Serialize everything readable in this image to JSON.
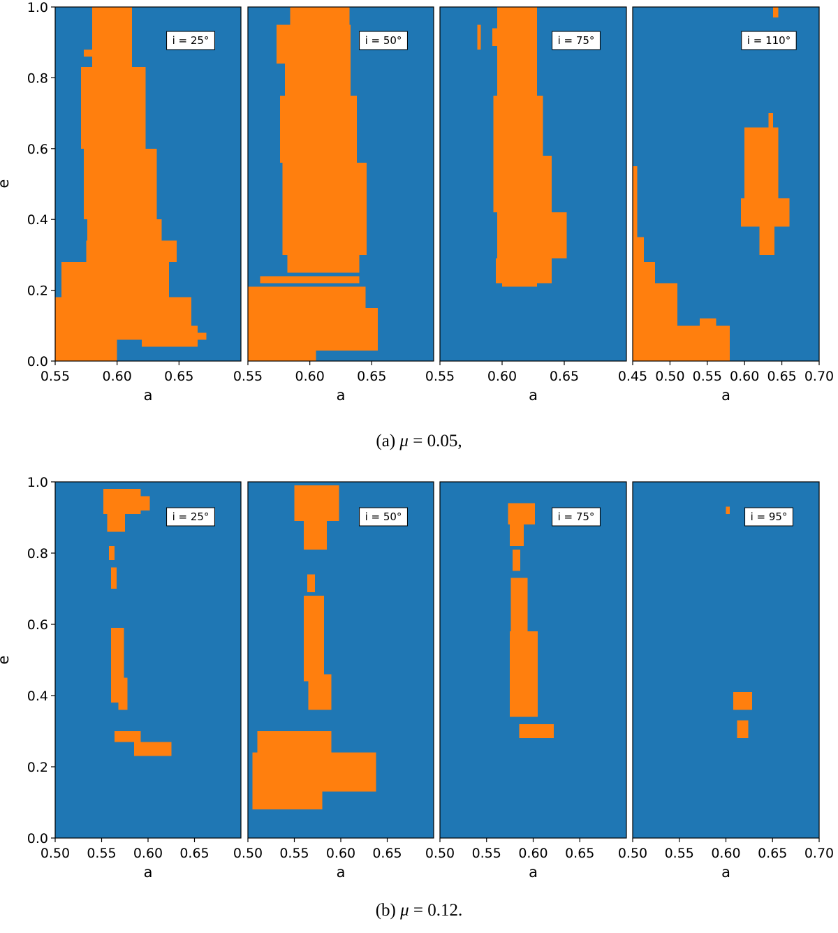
{
  "colors": {
    "stable": "#1f77b4",
    "unstable": "#ff7f0e"
  },
  "captions": [
    {
      "prefix": "(a)",
      "symbol": "μ",
      "value": "= 0.05,"
    },
    {
      "prefix": "(b)",
      "symbol": "μ",
      "value": "= 0.12."
    }
  ],
  "chart_data": [
    {
      "type": "heatmap",
      "figure": "a",
      "ylabel": "e",
      "ylim": [
        0,
        1
      ],
      "yticks": [
        "0.0",
        "0.2",
        "0.4",
        "0.6",
        "0.8",
        "1.0"
      ],
      "panels": [
        {
          "annotation": "i = 25°",
          "xlabel": "a",
          "xlim": [
            0.55,
            0.7
          ],
          "xticks": [
            "0.55",
            "0.60",
            "0.65"
          ],
          "regions": [
            {
              "a_min": 0.58,
              "a_max": 0.612,
              "e_min": 0.8,
              "e_max": 1.0
            },
            {
              "a_min": 0.573,
              "a_max": 0.58,
              "e_min": 0.86,
              "e_max": 0.88
            },
            {
              "a_min": 0.571,
              "a_max": 0.623,
              "e_min": 0.6,
              "e_max": 0.83
            },
            {
              "a_min": 0.573,
              "a_max": 0.632,
              "e_min": 0.4,
              "e_max": 0.6
            },
            {
              "a_min": 0.576,
              "a_max": 0.636,
              "e_min": 0.3,
              "e_max": 0.4
            },
            {
              "a_min": 0.575,
              "a_max": 0.648,
              "e_min": 0.28,
              "e_max": 0.34
            },
            {
              "a_min": 0.555,
              "a_max": 0.642,
              "e_min": 0.18,
              "e_max": 0.28
            },
            {
              "a_min": 0.55,
              "a_max": 0.66,
              "e_min": 0.06,
              "e_max": 0.18
            },
            {
              "a_min": 0.55,
              "a_max": 0.6,
              "e_min": 0.0,
              "e_max": 0.06
            },
            {
              "a_min": 0.62,
              "a_max": 0.665,
              "e_min": 0.04,
              "e_max": 0.1
            },
            {
              "a_min": 0.66,
              "a_max": 0.672,
              "e_min": 0.06,
              "e_max": 0.08
            }
          ]
        },
        {
          "annotation": "i = 50°",
          "xlabel": "a",
          "xlim": [
            0.55,
            0.7
          ],
          "xticks": [
            "0.55",
            "0.60",
            "0.65"
          ],
          "regions": [
            {
              "a_min": 0.584,
              "a_max": 0.632,
              "e_min": 0.95,
              "e_max": 1.0
            },
            {
              "a_min": 0.573,
              "a_max": 0.633,
              "e_min": 0.84,
              "e_max": 0.95
            },
            {
              "a_min": 0.58,
              "a_max": 0.633,
              "e_min": 0.75,
              "e_max": 0.84
            },
            {
              "a_min": 0.576,
              "a_max": 0.638,
              "e_min": 0.56,
              "e_max": 0.75
            },
            {
              "a_min": 0.578,
              "a_max": 0.646,
              "e_min": 0.3,
              "e_max": 0.56
            },
            {
              "a_min": 0.582,
              "a_max": 0.64,
              "e_min": 0.25,
              "e_max": 0.3
            },
            {
              "a_min": 0.56,
              "a_max": 0.64,
              "e_min": 0.22,
              "e_max": 0.24
            },
            {
              "a_min": 0.55,
              "a_max": 0.645,
              "e_min": 0.1,
              "e_max": 0.21
            },
            {
              "a_min": 0.55,
              "a_max": 0.655,
              "e_min": 0.03,
              "e_max": 0.15
            },
            {
              "a_min": 0.55,
              "a_max": 0.605,
              "e_min": 0.0,
              "e_max": 0.03
            }
          ]
        },
        {
          "annotation": "i = 75°",
          "xlabel": "a",
          "xlim": [
            0.55,
            0.7
          ],
          "xticks": [
            "0.55",
            "0.60",
            "0.65"
          ],
          "regions": [
            {
              "a_min": 0.596,
              "a_max": 0.628,
              "e_min": 0.75,
              "e_max": 1.0
            },
            {
              "a_min": 0.592,
              "a_max": 0.596,
              "e_min": 0.89,
              "e_max": 0.94
            },
            {
              "a_min": 0.58,
              "a_max": 0.583,
              "e_min": 0.88,
              "e_max": 0.95
            },
            {
              "a_min": 0.593,
              "a_max": 0.633,
              "e_min": 0.58,
              "e_max": 0.75
            },
            {
              "a_min": 0.593,
              "a_max": 0.64,
              "e_min": 0.42,
              "e_max": 0.58
            },
            {
              "a_min": 0.596,
              "a_max": 0.652,
              "e_min": 0.29,
              "e_max": 0.42
            },
            {
              "a_min": 0.595,
              "a_max": 0.64,
              "e_min": 0.22,
              "e_max": 0.29
            },
            {
              "a_min": 0.6,
              "a_max": 0.628,
              "e_min": 0.21,
              "e_max": 0.23
            }
          ]
        },
        {
          "annotation": "i = 110°",
          "xlabel": "a",
          "xlim": [
            0.45,
            0.7
          ],
          "xticks": [
            "0.45",
            "0.50",
            "0.55",
            "0.60",
            "0.65",
            "0.70"
          ],
          "regions": [
            {
              "a_min": 0.45,
              "a_max": 0.456,
              "e_min": 0.25,
              "e_max": 0.55
            },
            {
              "a_min": 0.45,
              "a_max": 0.465,
              "e_min": 0.2,
              "e_max": 0.35
            },
            {
              "a_min": 0.45,
              "a_max": 0.48,
              "e_min": 0.15,
              "e_max": 0.28
            },
            {
              "a_min": 0.45,
              "a_max": 0.51,
              "e_min": 0.06,
              "e_max": 0.22
            },
            {
              "a_min": 0.45,
              "a_max": 0.58,
              "e_min": 0.0,
              "e_max": 0.1
            },
            {
              "a_min": 0.54,
              "a_max": 0.562,
              "e_min": 0.05,
              "e_max": 0.12
            },
            {
              "a_min": 0.6,
              "a_max": 0.645,
              "e_min": 0.42,
              "e_max": 0.66
            },
            {
              "a_min": 0.595,
              "a_max": 0.66,
              "e_min": 0.38,
              "e_max": 0.46
            },
            {
              "a_min": 0.62,
              "a_max": 0.64,
              "e_min": 0.3,
              "e_max": 0.38
            },
            {
              "a_min": 0.632,
              "a_max": 0.638,
              "e_min": 0.66,
              "e_max": 0.7
            },
            {
              "a_min": 0.638,
              "a_max": 0.645,
              "e_min": 0.97,
              "e_max": 1.0
            }
          ]
        }
      ]
    },
    {
      "type": "heatmap",
      "figure": "b",
      "ylabel": "e",
      "ylim": [
        0,
        1
      ],
      "yticks": [
        "0.0",
        "0.2",
        "0.4",
        "0.6",
        "0.8",
        "1.0"
      ],
      "panels": [
        {
          "annotation": "i = 25°",
          "xlabel": "a",
          "xlim": [
            0.5,
            0.7
          ],
          "xticks": [
            "0.50",
            "0.55",
            "0.60",
            "0.65"
          ],
          "regions": [
            {
              "a_min": 0.552,
              "a_max": 0.592,
              "e_min": 0.91,
              "e_max": 0.98
            },
            {
              "a_min": 0.59,
              "a_max": 0.602,
              "e_min": 0.92,
              "e_max": 0.96
            },
            {
              "a_min": 0.556,
              "a_max": 0.575,
              "e_min": 0.86,
              "e_max": 0.91
            },
            {
              "a_min": 0.558,
              "a_max": 0.564,
              "e_min": 0.78,
              "e_max": 0.82
            },
            {
              "a_min": 0.56,
              "a_max": 0.566,
              "e_min": 0.7,
              "e_max": 0.76
            },
            {
              "a_min": 0.56,
              "a_max": 0.574,
              "e_min": 0.38,
              "e_max": 0.59
            },
            {
              "a_min": 0.568,
              "a_max": 0.578,
              "e_min": 0.36,
              "e_max": 0.45
            },
            {
              "a_min": 0.564,
              "a_max": 0.592,
              "e_min": 0.27,
              "e_max": 0.3
            },
            {
              "a_min": 0.585,
              "a_max": 0.625,
              "e_min": 0.23,
              "e_max": 0.27
            }
          ]
        },
        {
          "annotation": "i = 50°",
          "xlabel": "a",
          "xlim": [
            0.5,
            0.7
          ],
          "xticks": [
            "0.50",
            "0.55",
            "0.60",
            "0.65"
          ],
          "regions": [
            {
              "a_min": 0.55,
              "a_max": 0.598,
              "e_min": 0.89,
              "e_max": 0.99
            },
            {
              "a_min": 0.56,
              "a_max": 0.585,
              "e_min": 0.81,
              "e_max": 0.89
            },
            {
              "a_min": 0.564,
              "a_max": 0.572,
              "e_min": 0.69,
              "e_max": 0.74
            },
            {
              "a_min": 0.56,
              "a_max": 0.582,
              "e_min": 0.44,
              "e_max": 0.68
            },
            {
              "a_min": 0.565,
              "a_max": 0.59,
              "e_min": 0.36,
              "e_max": 0.46
            },
            {
              "a_min": 0.51,
              "a_max": 0.59,
              "e_min": 0.2,
              "e_max": 0.3
            },
            {
              "a_min": 0.505,
              "a_max": 0.638,
              "e_min": 0.13,
              "e_max": 0.24
            },
            {
              "a_min": 0.505,
              "a_max": 0.58,
              "e_min": 0.08,
              "e_max": 0.14
            }
          ]
        },
        {
          "annotation": "i = 75°",
          "xlabel": "a",
          "xlim": [
            0.5,
            0.7
          ],
          "xticks": [
            "0.50",
            "0.55",
            "0.60",
            "0.65"
          ],
          "regions": [
            {
              "a_min": 0.573,
              "a_max": 0.602,
              "e_min": 0.88,
              "e_max": 0.94
            },
            {
              "a_min": 0.575,
              "a_max": 0.59,
              "e_min": 0.82,
              "e_max": 0.88
            },
            {
              "a_min": 0.578,
              "a_max": 0.586,
              "e_min": 0.75,
              "e_max": 0.81
            },
            {
              "a_min": 0.576,
              "a_max": 0.594,
              "e_min": 0.58,
              "e_max": 0.73
            },
            {
              "a_min": 0.575,
              "a_max": 0.605,
              "e_min": 0.34,
              "e_max": 0.58
            },
            {
              "a_min": 0.585,
              "a_max": 0.622,
              "e_min": 0.28,
              "e_max": 0.32
            }
          ]
        },
        {
          "annotation": "i = 95°",
          "xlabel": "a",
          "xlim": [
            0.5,
            0.7
          ],
          "xticks": [
            "0.50",
            "0.55",
            "0.60",
            "0.65",
            "0.70"
          ],
          "regions": [
            {
              "a_min": 0.6,
              "a_max": 0.604,
              "e_min": 0.91,
              "e_max": 0.93
            },
            {
              "a_min": 0.608,
              "a_max": 0.628,
              "e_min": 0.36,
              "e_max": 0.41
            },
            {
              "a_min": 0.612,
              "a_max": 0.624,
              "e_min": 0.28,
              "e_max": 0.33
            }
          ]
        }
      ]
    }
  ]
}
